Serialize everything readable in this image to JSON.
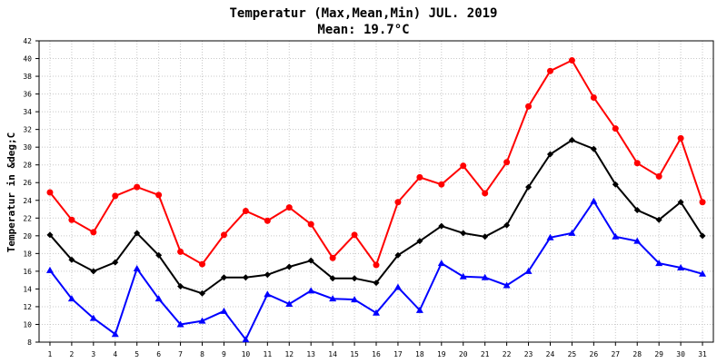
{
  "chart_data": {
    "type": "line",
    "title": "Temperatur (Max,Mean,Min) JUL. 2019",
    "subtitle": "Mean: 19.7°C",
    "xlabel": "",
    "ylabel": "Temperatur in &deg;C",
    "x": [
      "1",
      "2",
      "3",
      "4",
      "5",
      "6",
      "7",
      "8",
      "9",
      "10",
      "11",
      "12",
      "13",
      "14",
      "15",
      "16",
      "17",
      "18",
      "19",
      "20",
      "21",
      "22",
      "23",
      "24",
      "25",
      "26",
      "27",
      "28",
      "29",
      "30",
      "31"
    ],
    "ylim": [
      8,
      42
    ],
    "yticks": [
      8,
      10,
      12,
      14,
      16,
      18,
      20,
      22,
      24,
      26,
      28,
      30,
      32,
      34,
      36,
      38,
      40,
      42
    ],
    "grid": true,
    "series": [
      {
        "name": "Max",
        "color": "#ff0000",
        "marker": "circle",
        "values": [
          24.9,
          21.8,
          20.4,
          24.5,
          25.5,
          24.6,
          18.2,
          16.8,
          20.1,
          22.8,
          21.7,
          23.2,
          21.3,
          17.5,
          20.1,
          16.7,
          23.8,
          26.6,
          25.8,
          27.9,
          24.8,
          28.3,
          34.6,
          38.6,
          39.8,
          35.6,
          32.1,
          28.2,
          26.7,
          31.0,
          23.8
        ]
      },
      {
        "name": "Mean",
        "color": "#000000",
        "marker": "diamond",
        "values": [
          20.1,
          17.3,
          16.0,
          17.0,
          20.3,
          17.8,
          14.3,
          13.5,
          15.3,
          15.3,
          15.6,
          16.5,
          17.2,
          15.2,
          15.2,
          14.7,
          17.8,
          19.4,
          21.1,
          20.3,
          19.9,
          21.2,
          25.5,
          29.2,
          30.8,
          29.8,
          25.8,
          22.9,
          21.8,
          23.8,
          20.0
        ]
      },
      {
        "name": "Min",
        "color": "#0000ff",
        "marker": "triangle",
        "values": [
          16.1,
          12.9,
          10.7,
          8.9,
          16.3,
          12.9,
          10.0,
          10.4,
          11.5,
          8.3,
          13.4,
          12.3,
          13.8,
          12.9,
          12.8,
          11.3,
          14.2,
          11.6,
          16.9,
          15.4,
          15.3,
          14.4,
          16.0,
          19.8,
          20.3,
          23.9,
          19.9,
          19.4,
          16.9,
          16.4,
          15.7
        ]
      }
    ]
  }
}
